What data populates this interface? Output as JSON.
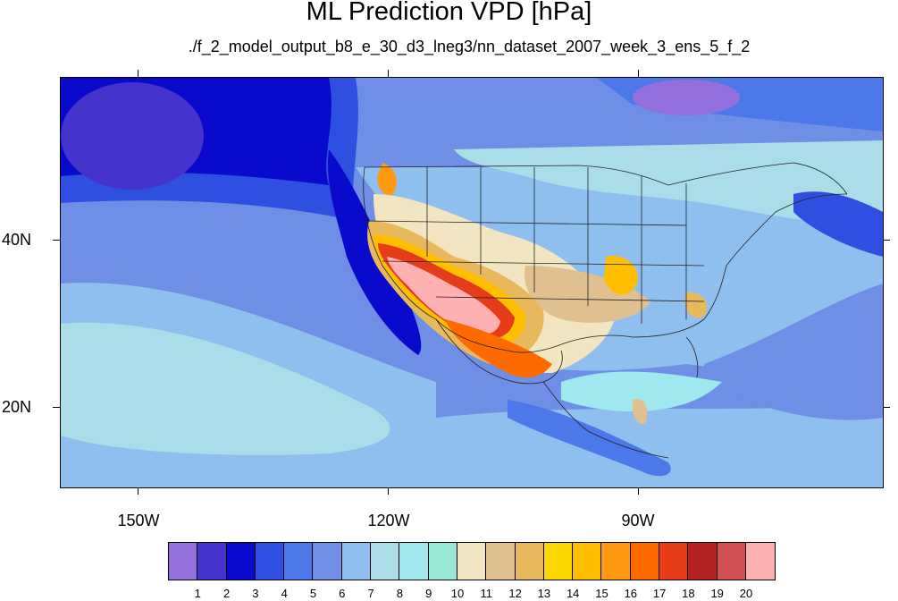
{
  "title": "ML Prediction VPD [hPa]",
  "subtitle": "./f_2_model_output_b8_e_30_d3_lneg3/nn_dataset_2007_week_3_ens_5_f_2",
  "lat_labels": [
    "40N",
    "20N"
  ],
  "lon_labels": [
    "150W",
    "120W",
    "90W"
  ],
  "colorbar": {
    "colors": [
      "#9370db",
      "#4433cc",
      "#0a0acc",
      "#2e4fe0",
      "#4d78ea",
      "#6f8fe6",
      "#8fbfee",
      "#aadde8",
      "#9ee8ee",
      "#98e8d8",
      "#f2e6c2",
      "#e0c090",
      "#e8b85c",
      "#ffd700",
      "#ffbf00",
      "#ff9a10",
      "#ff6a00",
      "#e63c18",
      "#b52222",
      "#d05050",
      "#ffb0b0"
    ],
    "labels": [
      "1",
      "2",
      "3",
      "4",
      "5",
      "6",
      "7",
      "8",
      "9",
      "10",
      "11",
      "12",
      "13",
      "14",
      "15",
      "16",
      "17",
      "18",
      "19",
      "20"
    ]
  }
}
